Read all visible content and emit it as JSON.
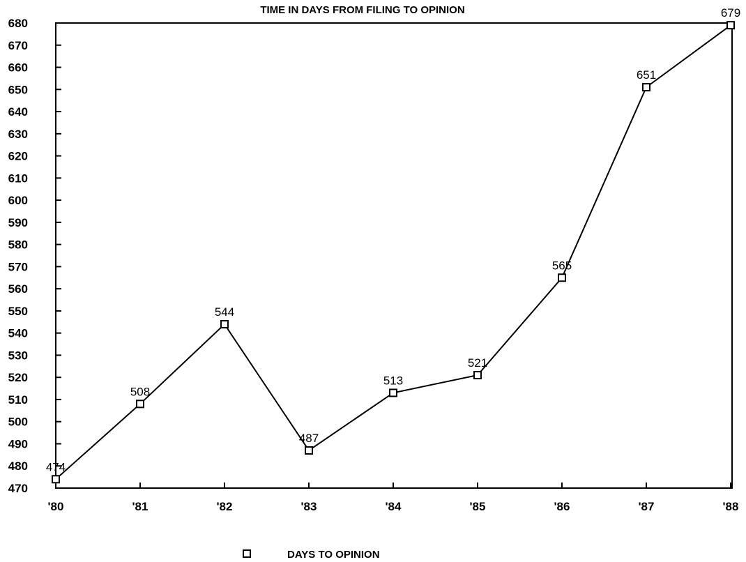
{
  "chart_data": {
    "type": "line",
    "title": "TIME IN DAYS FROM FILING TO OPINION",
    "xlabel": "",
    "ylabel": "",
    "categories": [
      "'80",
      "'81",
      "'82",
      "'83",
      "'84",
      "'85",
      "'86",
      "'87",
      "'88"
    ],
    "series": [
      {
        "name": "DAYS TO OPINION",
        "marker": "open-square",
        "values": [
          474,
          508,
          544,
          487,
          513,
          521,
          565,
          651,
          679
        ]
      }
    ],
    "data_labels": [
      "474",
      "508",
      "544",
      "487",
      "513",
      "521",
      "565",
      "651",
      "679"
    ],
    "ylim": [
      470,
      680
    ],
    "yticks": [
      470,
      480,
      490,
      500,
      510,
      520,
      530,
      540,
      550,
      560,
      570,
      580,
      590,
      600,
      610,
      620,
      630,
      640,
      650,
      660,
      670,
      680
    ],
    "grid": false,
    "legend_position": "bottom-center"
  }
}
